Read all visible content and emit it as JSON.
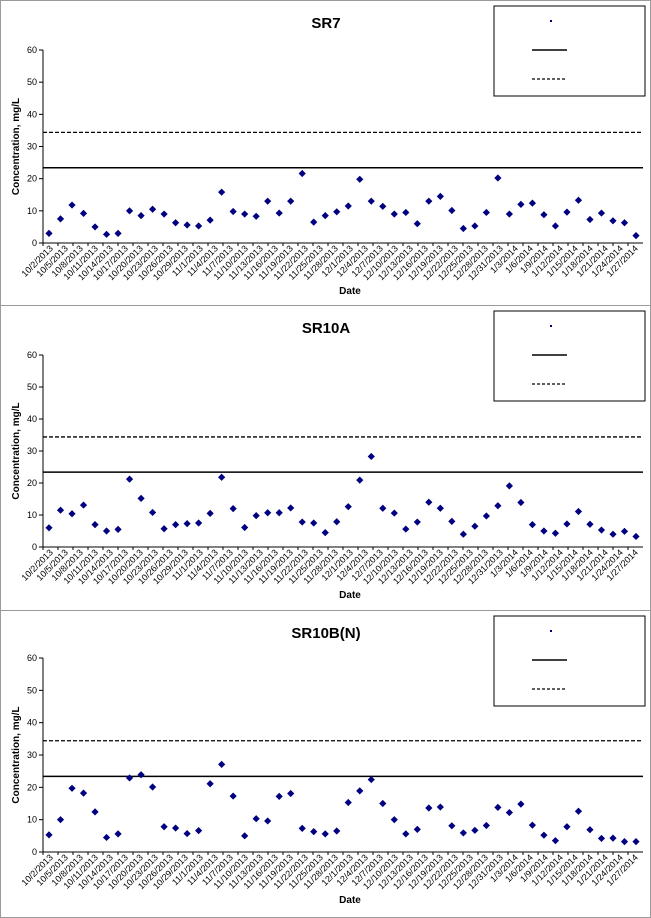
{
  "ylabel": "Concentration, mg/L",
  "xlabel": "Date",
  "x_tick_labels": [
    "10/2/2013",
    "10/5/2013",
    "10/8/2013",
    "10/11/2013",
    "10/14/2013",
    "10/17/2013",
    "10/20/2013",
    "10/23/2013",
    "10/26/2013",
    "10/29/2013",
    "11/1/2013",
    "11/4/2013",
    "11/7/2013",
    "11/10/2013",
    "11/13/2013",
    "11/16/2013",
    "11/19/2013",
    "11/22/2013",
    "11/25/2013",
    "11/28/2013",
    "12/1/2013",
    "12/4/2013",
    "12/7/2013",
    "12/10/2013",
    "12/13/2013",
    "12/16/2013",
    "12/19/2013",
    "12/22/2013",
    "12/25/2013",
    "12/28/2013",
    "12/31/2013",
    "1/3/2014",
    "1/6/2014",
    "1/9/2014",
    "1/12/2014",
    "1/15/2014",
    "1/18/2014",
    "1/21/2014",
    "1/24/2014",
    "1/27/2014"
  ],
  "y_ticks": [
    0,
    10,
    20,
    30,
    40,
    50,
    60
  ],
  "colors": {
    "marker": "#000080",
    "line": "#000000"
  },
  "chart_data": [
    {
      "type": "scatter",
      "title": "SR7",
      "ylim": [
        0,
        60
      ],
      "reference_lines": [
        {
          "value": 23.4,
          "style": "solid"
        },
        {
          "value": 34.4,
          "style": "dashed"
        }
      ],
      "values": [
        3,
        7.5,
        11.8,
        9.2,
        5,
        2.7,
        3,
        10,
        8.5,
        10.5,
        9,
        6.3,
        5.6,
        5.3,
        7.1,
        15.8,
        9.8,
        9,
        8.3,
        13,
        9.3,
        13,
        21.6,
        6.5,
        8.5,
        9.7,
        11.5,
        19.8,
        13,
        11.4,
        9,
        9.5,
        6,
        13,
        14.5,
        10.1,
        4.5,
        5.3,
        9.5,
        20.2,
        9,
        12,
        12.4,
        8.8,
        5.3,
        9.6,
        13.3,
        7.3,
        9.3,
        6.9,
        6.3,
        2.3
      ]
    },
    {
      "type": "scatter",
      "title": "SR10A",
      "ylim": [
        0,
        60
      ],
      "reference_lines": [
        {
          "value": 23.4,
          "style": "solid"
        },
        {
          "value": 34.4,
          "style": "dashed"
        }
      ],
      "values": [
        6,
        11.5,
        10.4,
        13.1,
        7,
        5,
        5.5,
        21.2,
        15.2,
        10.8,
        5.7,
        7,
        7.3,
        7.5,
        10.5,
        21.8,
        12,
        6.1,
        9.8,
        10.7,
        10.7,
        12.2,
        7.8,
        7.5,
        4.5,
        7.9,
        12.6,
        20.9,
        28.3,
        12.1,
        10.6,
        5.6,
        7.8,
        14,
        12.1,
        8,
        4,
        6.5,
        9.7,
        12.9,
        19.1,
        13.9,
        7,
        5,
        4.3,
        7.2,
        11.1,
        7.1,
        5.3,
        4,
        4.9,
        3.3
      ]
    },
    {
      "type": "scatter",
      "title": "SR10B(N)",
      "ylim": [
        0,
        60
      ],
      "reference_lines": [
        {
          "value": 23.4,
          "style": "solid"
        },
        {
          "value": 34.4,
          "style": "dashed"
        }
      ],
      "values": [
        5.3,
        10,
        19.7,
        18.2,
        12.4,
        4.5,
        5.6,
        22.9,
        23.9,
        20.1,
        7.8,
        7.4,
        5.7,
        6.6,
        21.1,
        27.1,
        17.3,
        5,
        10.3,
        9.6,
        17.2,
        18.1,
        7.3,
        6.3,
        5.6,
        6.5,
        15.3,
        18.9,
        22.4,
        15,
        10,
        5.6,
        7,
        13.6,
        13.9,
        8.1,
        5.9,
        6.7,
        8.2,
        13.8,
        12.2,
        14.8,
        8.3,
        5.2,
        3.5,
        7.8,
        12.6,
        6.9,
        4.2,
        4.3,
        3.2,
        3.2
      ]
    }
  ]
}
